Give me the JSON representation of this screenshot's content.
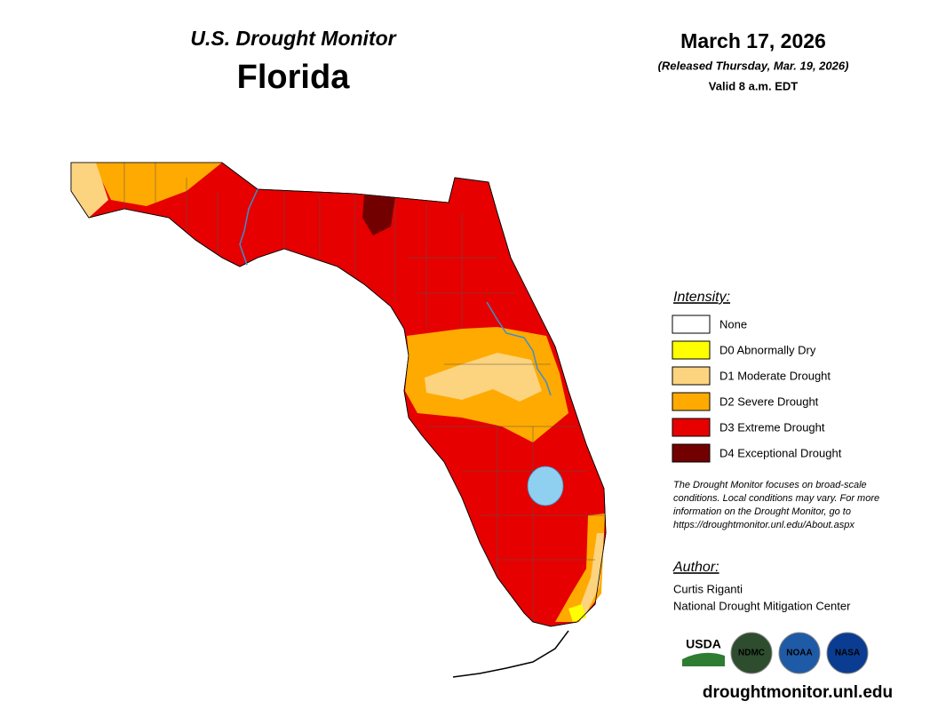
{
  "header": {
    "title": "U.S. Drought Monitor",
    "state": "Florida"
  },
  "date": {
    "map_date": "March 17, 2026",
    "released": "(Released Thursday, Mar. 19, 2026)",
    "valid": "Valid 8 a.m. EDT"
  },
  "legend": {
    "title": "Intensity:",
    "items": [
      {
        "label": "None",
        "color": "#ffffff"
      },
      {
        "label": "D0 Abnormally Dry",
        "color": "#ffff00"
      },
      {
        "label": "D1 Moderate Drought",
        "color": "#fcd37f"
      },
      {
        "label": "D2 Severe Drought",
        "color": "#ffaa00"
      },
      {
        "label": "D3 Extreme Drought",
        "color": "#e60000"
      },
      {
        "label": "D4 Exceptional Drought",
        "color": "#730000"
      }
    ]
  },
  "note": [
    "The Drought Monitor focuses on broad-scale",
    "conditions. Local conditions may vary. For more",
    "information on the Drought Monitor, go to",
    "https://droughtmonitor.unl.edu/About.aspx"
  ],
  "author": {
    "heading": "Author:",
    "name": "Curtis Riganti",
    "organization": "National Drought Mitigation Center"
  },
  "logos": [
    "USDA",
    "NDMC",
    "NOAA",
    "NASA"
  ],
  "url": "droughtmonitor.unl.edu"
}
